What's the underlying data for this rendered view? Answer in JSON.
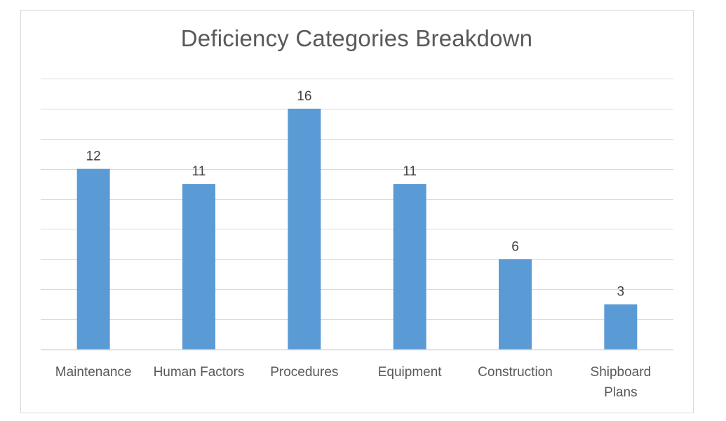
{
  "chart_data": {
    "type": "bar",
    "title": "Deficiency Categories Breakdown",
    "categories": [
      "Maintenance",
      "Human Factors",
      "Procedures",
      "Equipment",
      "Construction",
      "Shipboard Plans"
    ],
    "values": [
      12,
      11,
      16,
      11,
      6,
      3
    ],
    "data_labels": [
      "12",
      "11",
      "16",
      "11",
      "6",
      "3"
    ],
    "xlabel": "",
    "ylabel": "",
    "ylim": [
      0,
      18
    ],
    "ytick_step": 2,
    "grid": true,
    "legend": "none",
    "bar_color": "#5b9bd5"
  }
}
